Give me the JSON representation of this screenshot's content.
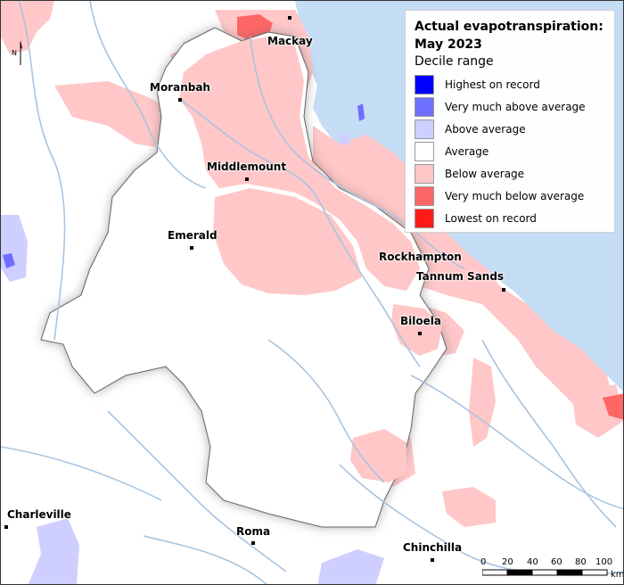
{
  "legend": {
    "title_line1": "Actual evapotranspiration:",
    "title_line2": "May 2023",
    "subtitle": "Decile range",
    "items": [
      {
        "label": "Highest on record",
        "color": "#0000ff"
      },
      {
        "label": "Very much above average",
        "color": "#6f6fff"
      },
      {
        "label": "Above average",
        "color": "#cfcfff"
      },
      {
        "label": "Average",
        "color": "#ffffff"
      },
      {
        "label": "Below average",
        "color": "#ffc7c7"
      },
      {
        "label": "Very much below average",
        "color": "#ff6666"
      },
      {
        "label": "Lowest on record",
        "color": "#ff1a1a"
      }
    ]
  },
  "towns": {
    "mackay": "Mackay",
    "moranbah": "Moranbah",
    "middlemount": "Middlemount",
    "emerald": "Emerald",
    "rockhampton": "Rockhampton",
    "tannum_sands": "Tannum Sands",
    "biloela": "Biloela",
    "charleville": "Charleville",
    "roma": "Roma",
    "chinchilla": "Chinchilla"
  },
  "north_arrow": {
    "label": "N"
  },
  "scale": {
    "ticks": [
      "0",
      "20",
      "40",
      "60",
      "80",
      "100"
    ],
    "unit": "km"
  },
  "colors": {
    "ocean": "#c5dcf5",
    "river": "#a9c4df"
  }
}
